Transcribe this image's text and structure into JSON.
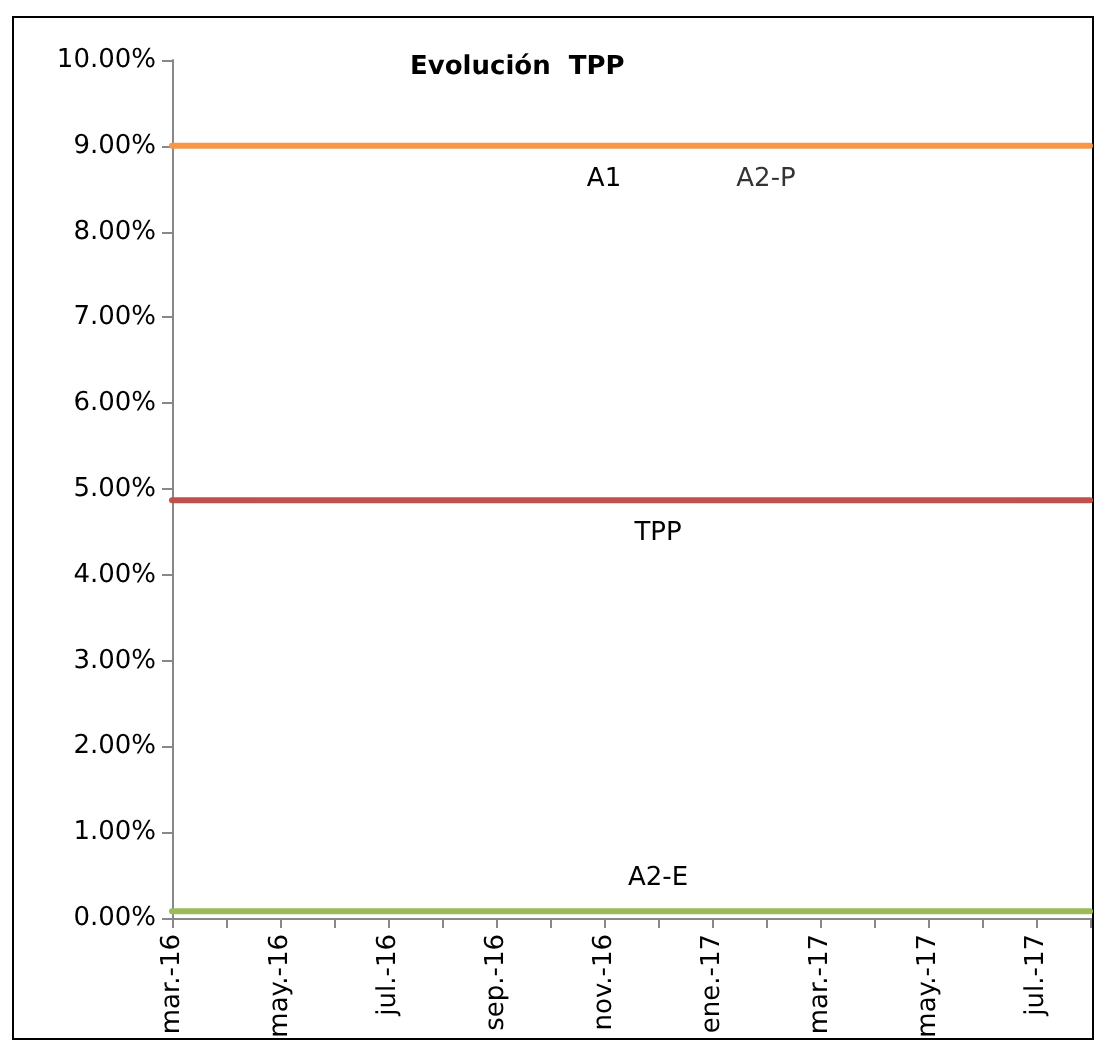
{
  "chart_data": {
    "type": "line",
    "title": "Evolución  TPP",
    "categories": [
      "mar.-16",
      null,
      "may.-16",
      null,
      "jul.-16",
      null,
      "sep.-16",
      null,
      "nov.-16",
      null,
      "ene.-17",
      null,
      "mar.-17",
      null,
      "may.-17",
      null,
      "jul.-17",
      null
    ],
    "series": [
      {
        "name": "A1",
        "color": "#f79646",
        "values": [
          9,
          9,
          9,
          9,
          9,
          9,
          9,
          9,
          9,
          9,
          9,
          9,
          9,
          9,
          9,
          9,
          9,
          9
        ]
      },
      {
        "name": "TPP",
        "color": "#c0504d",
        "values": [
          4.87,
          4.87,
          4.87,
          4.87,
          4.87,
          4.87,
          4.87,
          4.87,
          4.87,
          4.87,
          4.87,
          4.87,
          4.87,
          4.87,
          4.87,
          4.87,
          4.87,
          4.87
        ]
      },
      {
        "name": "A2-E",
        "color": "#9bbb59",
        "values": [
          0.08,
          0.08,
          0.08,
          0.08,
          0.08,
          0.08,
          0.08,
          0.08,
          0.08,
          0.08,
          0.08,
          0.08,
          0.08,
          0.08,
          0.08,
          0.08,
          0.08,
          0.08
        ]
      }
    ],
    "ylim": [
      0,
      10
    ],
    "yticks": [
      {
        "value": 0,
        "label": "0.00%"
      },
      {
        "value": 1,
        "label": "1.00%"
      },
      {
        "value": 2,
        "label": "2.00%"
      },
      {
        "value": 3,
        "label": "3.00%"
      },
      {
        "value": 4,
        "label": "4.00%"
      },
      {
        "value": 5,
        "label": "5.00%"
      },
      {
        "value": 6,
        "label": "6.00%"
      },
      {
        "value": 7,
        "label": "7.00%"
      },
      {
        "value": 8,
        "label": "8.00%"
      },
      {
        "value": 9,
        "label": "9.00%"
      },
      {
        "value": 10,
        "label": "10.00%"
      }
    ],
    "annotations": [
      {
        "text": "A2-P",
        "y": 9
      }
    ],
    "grid": false,
    "legend": false,
    "marker": "none",
    "line_style": "solid"
  }
}
